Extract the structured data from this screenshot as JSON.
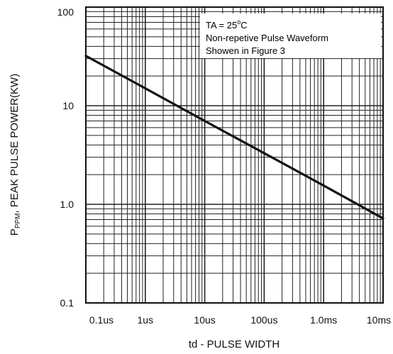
{
  "chart_data": {
    "type": "line",
    "title": "",
    "xlabel": "td - PULSE WIDTH",
    "ylabel_sub": "PPM",
    "ylabel_main": "P",
    "ylabel_rest": ", PEAK PULSE POWER(KW)",
    "x_scale": "log",
    "y_scale": "log",
    "grid": true,
    "xlim_seconds": [
      1e-07,
      0.01
    ],
    "ylim_kw": [
      0.1,
      100
    ],
    "x_ticks": [
      {
        "value": 1e-07,
        "label": "0.1us"
      },
      {
        "value": 1e-06,
        "label": "1us"
      },
      {
        "value": 1e-05,
        "label": "10us"
      },
      {
        "value": 0.0001,
        "label": "100us"
      },
      {
        "value": 0.001,
        "label": "1.0ms"
      },
      {
        "value": 0.01,
        "label": "10ms"
      }
    ],
    "y_ticks": [
      {
        "value": 0.1,
        "label": "0.1"
      },
      {
        "value": 1,
        "label": "1.0"
      },
      {
        "value": 10,
        "label": "10"
      },
      {
        "value": 100,
        "label": "100"
      }
    ],
    "series": [
      {
        "color": "#111111",
        "x": [
          1e-07,
          1e-06,
          1e-05,
          0.0001,
          0.001,
          0.01
        ],
        "y": [
          32,
          15,
          7.0,
          3.3,
          1.55,
          0.72
        ]
      }
    ],
    "annotation": {
      "line1_prefix": "TA = 25",
      "line1_sup": "o",
      "line1_suffix": "C",
      "line2": "Non-repetive Pulse Waveform",
      "line3": "Showen in Figure 3"
    }
  }
}
